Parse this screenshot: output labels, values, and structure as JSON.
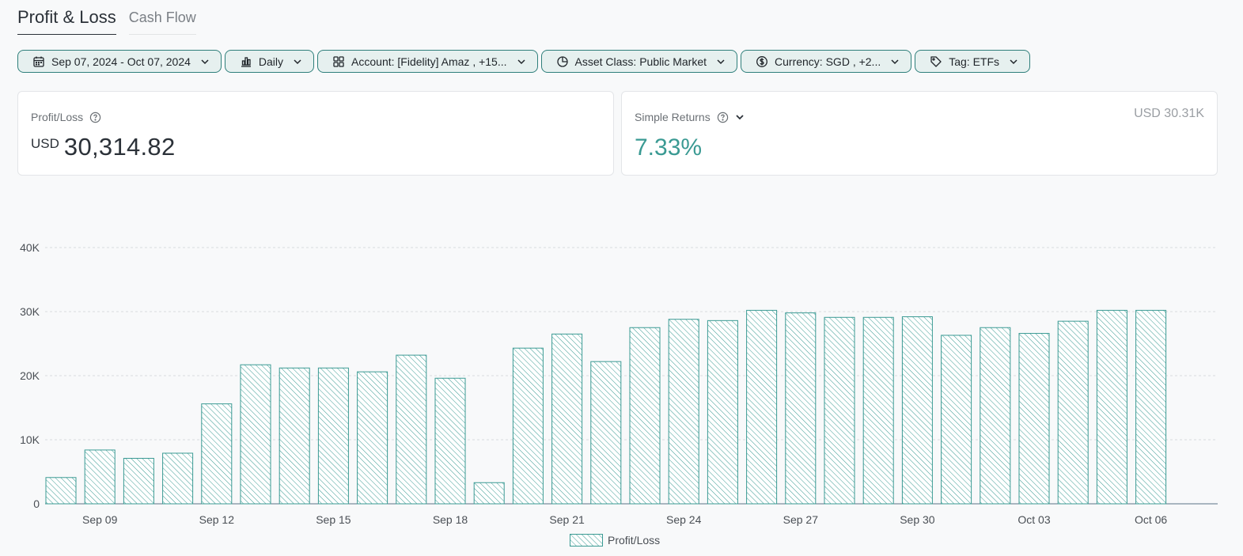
{
  "tabs": [
    {
      "label": "Profit & Loss",
      "active": true
    },
    {
      "label": "Cash Flow",
      "active": false
    }
  ],
  "filters": [
    {
      "icon": "calendar-icon",
      "label": "Sep 07, 2024 - Oct 07, 2024"
    },
    {
      "icon": "bar-chart-icon",
      "label": "Daily"
    },
    {
      "icon": "grid-icon",
      "label": "Account: [Fidelity] Amaz , +15..."
    },
    {
      "icon": "pie-chart-icon",
      "label": "Asset Class: Public Market"
    },
    {
      "icon": "currency-icon",
      "label": "Currency: SGD , +2..."
    },
    {
      "icon": "tag-icon",
      "label": "Tag: ETFs"
    }
  ],
  "profit_card": {
    "title": "Profit/Loss",
    "currency": "USD",
    "value": "30,314.82"
  },
  "returns_card": {
    "title": "Simple Returns",
    "value": "7.33%",
    "amount": "USD 30.31K"
  },
  "colors": {
    "accent": "#3a9a93",
    "bar_stroke": "#3a9a93",
    "chip_border": "#2f7f7b",
    "chip_bg": "#e6f0ef"
  },
  "chart_data": {
    "type": "bar",
    "ytick_labels": [
      "0",
      "10K",
      "20K",
      "30K",
      "40K"
    ],
    "ylim": [
      0,
      40000
    ],
    "xtick_labels": [
      "Sep 09",
      "Sep 12",
      "Sep 15",
      "Sep 18",
      "Sep 21",
      "Sep 24",
      "Sep 27",
      "Sep 30",
      "Oct 03",
      "Oct 06"
    ],
    "categories": [
      "Sep 08",
      "Sep 09",
      "Sep 10",
      "Sep 11",
      "Sep 12",
      "Sep 13",
      "Sep 14",
      "Sep 15",
      "Sep 16",
      "Sep 17",
      "Sep 18",
      "Sep 19",
      "Sep 20",
      "Sep 21",
      "Sep 22",
      "Sep 23",
      "Sep 24",
      "Sep 25",
      "Sep 26",
      "Sep 27",
      "Sep 28",
      "Sep 29",
      "Sep 30",
      "Oct 01",
      "Oct 02",
      "Oct 03",
      "Oct 04",
      "Oct 05",
      "Oct 06"
    ],
    "series": [
      {
        "name": "Profit/Loss",
        "values": [
          4100,
          8400,
          7100,
          7900,
          15600,
          21700,
          21200,
          21200,
          20600,
          23200,
          19600,
          3300,
          24300,
          26500,
          22200,
          27500,
          28800,
          28600,
          30200,
          29800,
          29100,
          29100,
          29200,
          26300,
          27500,
          26600,
          28500,
          30200,
          30200
        ]
      }
    ],
    "grid": true,
    "legend_position": "bottom-center"
  }
}
